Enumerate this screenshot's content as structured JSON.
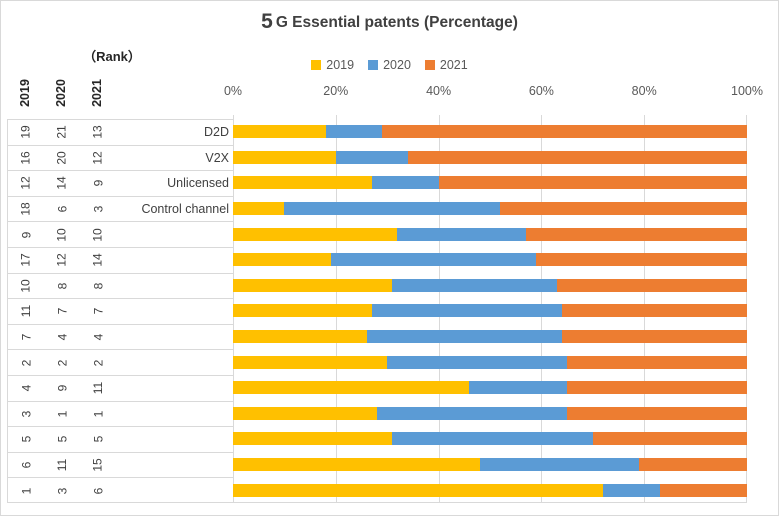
{
  "title": {
    "prefix": "5",
    "main": "G Essential patents (Percentage)"
  },
  "rank_axis": {
    "title": "（Rank）",
    "columns": [
      "2019",
      "2020",
      "2021"
    ]
  },
  "legend": {
    "items": [
      {
        "label": "2019",
        "color": "#FFC000"
      },
      {
        "label": "2020",
        "color": "#5B9BD5"
      },
      {
        "label": "2021",
        "color": "#ED7D31"
      }
    ]
  },
  "x_axis": {
    "tick_labels": [
      "0%",
      "20%",
      "40%",
      "60%",
      "80%",
      "100%"
    ]
  },
  "colors": {
    "grid": "#d9d9d9",
    "text_dark": "#404040",
    "text_axis": "#595959"
  },
  "chart_data": {
    "type": "bar",
    "stacked": true,
    "orientation": "horizontal",
    "title": "5G Essential patents (Percentage)",
    "xlabel": "",
    "ylabel": "(Rank)",
    "xlim": [
      0,
      100
    ],
    "grid": true,
    "legend_position": "top",
    "x_tick_labels": [
      "0%",
      "20%",
      "40%",
      "60%",
      "80%",
      "100%"
    ],
    "categories": [
      "D2D",
      "V2X",
      "Unlicensed",
      "Control channel",
      "",
      "",
      "",
      "",
      "",
      "",
      "",
      "",
      "",
      "",
      ""
    ],
    "series": [
      {
        "name": "2019",
        "color": "#FFC000",
        "values": [
          18,
          20,
          27,
          10,
          32,
          19,
          31,
          27,
          26,
          30,
          46,
          28,
          31,
          48,
          72
        ]
      },
      {
        "name": "2020",
        "color": "#5B9BD5",
        "values": [
          11,
          14,
          13,
          42,
          25,
          40,
          32,
          37,
          38,
          35,
          19,
          37,
          39,
          31,
          11
        ]
      },
      {
        "name": "2021",
        "color": "#ED7D31",
        "values": [
          71,
          66,
          60,
          48,
          43,
          41,
          37,
          36,
          36,
          35,
          35,
          35,
          30,
          21,
          17
        ]
      }
    ],
    "ranks": [
      [
        19,
        21,
        13
      ],
      [
        16,
        20,
        12
      ],
      [
        12,
        14,
        9
      ],
      [
        18,
        6,
        3
      ],
      [
        9,
        10,
        10
      ],
      [
        17,
        12,
        14
      ],
      [
        10,
        8,
        8
      ],
      [
        11,
        7,
        7
      ],
      [
        7,
        4,
        4
      ],
      [
        2,
        2,
        2
      ],
      [
        4,
        9,
        11
      ],
      [
        3,
        1,
        1
      ],
      [
        5,
        5,
        5
      ],
      [
        6,
        11,
        15
      ],
      [
        1,
        3,
        6
      ]
    ]
  }
}
